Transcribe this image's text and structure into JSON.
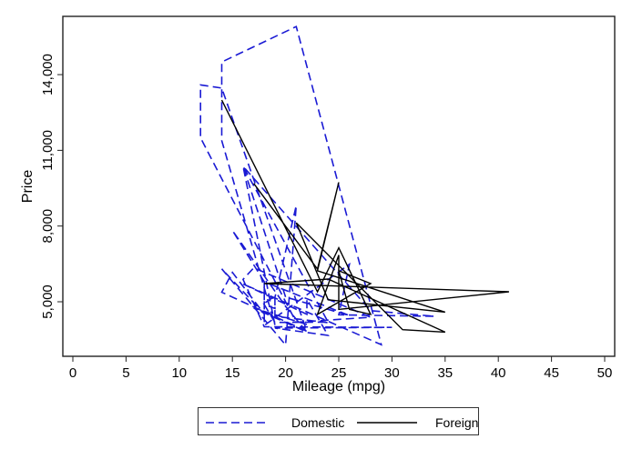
{
  "chart_data": {
    "type": "line",
    "title": "",
    "xlabel": "Mileage (mpg)",
    "ylabel": "Price",
    "xlim": [
      0,
      50
    ],
    "ylim": [
      3000,
      16300
    ],
    "xticks": [
      0,
      5,
      10,
      15,
      20,
      25,
      30,
      35,
      40,
      45,
      50
    ],
    "xtick_labels": [
      "0",
      "5",
      "10",
      "15",
      "20",
      "25",
      "30",
      "35",
      "40",
      "45",
      "50"
    ],
    "yticks": [
      5000,
      8000,
      11000,
      14000
    ],
    "ytick_labels": [
      "5,000",
      "8,000",
      "11,000",
      "14,000"
    ],
    "grid": false,
    "legend_position": "bottom",
    "series": [
      {
        "name": "Domestic",
        "color": "#1a1ad4",
        "style": "dashed",
        "points": [
          [
            22,
            4099
          ],
          [
            17,
            4749
          ],
          [
            22,
            3799
          ],
          [
            20,
            4816
          ],
          [
            15,
            7827
          ],
          [
            18,
            5788
          ],
          [
            26,
            4453
          ],
          [
            20,
            5189
          ],
          [
            16,
            10372
          ],
          [
            19,
            4082
          ],
          [
            14,
            11385
          ],
          [
            14,
            14500
          ],
          [
            21,
            15906
          ],
          [
            29,
            3299
          ],
          [
            16,
            5705
          ],
          [
            22,
            4504
          ],
          [
            22,
            5104
          ],
          [
            24,
            3667
          ],
          [
            19,
            3955
          ],
          [
            30,
            3984
          ],
          [
            18,
            4010
          ],
          [
            16,
            5886
          ],
          [
            17,
            6342
          ],
          [
            28,
            4389
          ],
          [
            21,
            4187
          ],
          [
            12,
            11497
          ],
          [
            12,
            13594
          ],
          [
            14,
            13466
          ],
          [
            22,
            3829
          ],
          [
            14,
            5379
          ],
          [
            15,
            6165
          ],
          [
            18,
            4516
          ],
          [
            14,
            6303
          ],
          [
            20,
            3291
          ],
          [
            21,
            8814
          ],
          [
            19,
            5172
          ],
          [
            19,
            4733
          ],
          [
            18,
            4890
          ],
          [
            19,
            4181
          ],
          [
            24,
            4195
          ],
          [
            16,
            10371
          ],
          [
            28,
            4647
          ],
          [
            34,
            4425
          ],
          [
            25,
            4482
          ],
          [
            26,
            6486
          ],
          [
            18,
            4060
          ],
          [
            18,
            5798
          ],
          [
            18,
            4934
          ],
          [
            19,
            5222
          ],
          [
            19,
            4723
          ],
          [
            19,
            4424
          ],
          [
            24,
            4172
          ]
        ]
      },
      {
        "name": "Foreign",
        "color": "#000000",
        "style": "solid",
        "points": [
          [
            17,
            9690
          ],
          [
            23,
            6295
          ],
          [
            25,
            9735
          ],
          [
            23,
            6229
          ],
          [
            35,
            4589
          ],
          [
            24,
            5079
          ],
          [
            21,
            8129
          ],
          [
            31,
            3895
          ],
          [
            35,
            3798
          ],
          [
            24,
            5899
          ],
          [
            18,
            5719
          ],
          [
            41,
            5397
          ],
          [
            25,
            4697
          ],
          [
            25,
            6850
          ],
          [
            23,
            4499
          ],
          [
            28,
            5719
          ],
          [
            25,
            6229
          ],
          [
            26,
            4697
          ],
          [
            28,
            4499
          ],
          [
            25,
            7140
          ],
          [
            23,
            5397
          ],
          [
            14,
            12990
          ]
        ]
      }
    ]
  },
  "axes": {
    "x_title": "Mileage (mpg)",
    "y_title": "Price"
  },
  "legend": {
    "items": [
      {
        "label": "Domestic",
        "color": "#1a1ad4",
        "style": "dashed"
      },
      {
        "label": "Foreign",
        "color": "#000000",
        "style": "solid"
      }
    ]
  }
}
